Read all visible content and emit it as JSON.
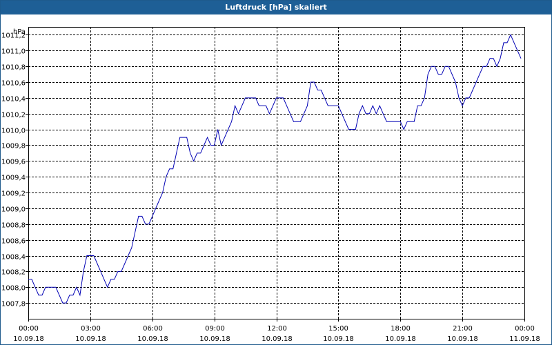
{
  "window": {
    "title": "Luftdruck [hPa] skaliert"
  },
  "colors": {
    "title_bar": "#1e5f96",
    "line": "#0000b4",
    "grid": "#000000",
    "background": "#ffffff"
  },
  "chart_data": {
    "type": "line",
    "title": "Luftdruck [hPa] skaliert",
    "ylabel": "hPa",
    "xlabel": "",
    "ylim": [
      1007.6,
      1011.3
    ],
    "grid": true,
    "y_ticks": [
      "1011,2",
      "1011,0",
      "1010,8",
      "1010,6",
      "1010,4",
      "1010,2",
      "1010,0",
      "1009,8",
      "1009,6",
      "1009,4",
      "1009,2",
      "1009,0",
      "1008,8",
      "1008,6",
      "1008,4",
      "1008,2",
      "1008,0",
      "1007,8"
    ],
    "y_tick_values": [
      1011.2,
      1011.0,
      1010.8,
      1010.6,
      1010.4,
      1010.2,
      1010.0,
      1009.8,
      1009.6,
      1009.4,
      1009.2,
      1009.0,
      1008.8,
      1008.6,
      1008.4,
      1008.2,
      1008.0,
      1007.8
    ],
    "x_ticks": [
      {
        "time": "00:00",
        "date": "10.09.18"
      },
      {
        "time": "03:00",
        "date": "10.09.18"
      },
      {
        "time": "06:00",
        "date": "10.09.18"
      },
      {
        "time": "09:00",
        "date": "10.09.18"
      },
      {
        "time": "12:00",
        "date": "10.09.18"
      },
      {
        "time": "15:00",
        "date": "10.09.18"
      },
      {
        "time": "18:00",
        "date": "10.09.18"
      },
      {
        "time": "21:00",
        "date": "10.09.18"
      },
      {
        "time": "00:00",
        "date": "11.09.18"
      }
    ],
    "series": [
      {
        "x": [
          "10.09.18 00:00",
          "10.09.18 00:10",
          "10.09.18 00:20",
          "10.09.18 00:30",
          "10.09.18 00:40",
          "10.09.18 00:50",
          "10.09.18 01:00",
          "10.09.18 01:10",
          "10.09.18 01:20",
          "10.09.18 01:30",
          "10.09.18 01:40",
          "10.09.18 01:50",
          "10.09.18 02:00",
          "10.09.18 02:10",
          "10.09.18 02:20",
          "10.09.18 02:30",
          "10.09.18 02:40",
          "10.09.18 02:50",
          "10.09.18 03:00",
          "10.09.18 03:10",
          "10.09.18 03:20",
          "10.09.18 03:30",
          "10.09.18 03:40",
          "10.09.18 03:50",
          "10.09.18 04:00",
          "10.09.18 04:10",
          "10.09.18 04:20",
          "10.09.18 04:30",
          "10.09.18 04:40",
          "10.09.18 04:50",
          "10.09.18 05:00",
          "10.09.18 05:10",
          "10.09.18 05:20",
          "10.09.18 05:30",
          "10.09.18 05:40",
          "10.09.18 05:50",
          "10.09.18 06:00",
          "10.09.18 06:10",
          "10.09.18 06:20",
          "10.09.18 06:30",
          "10.09.18 06:40",
          "10.09.18 06:50",
          "10.09.18 07:00",
          "10.09.18 07:10",
          "10.09.18 07:20",
          "10.09.18 07:30",
          "10.09.18 07:40",
          "10.09.18 07:50",
          "10.09.18 08:00",
          "10.09.18 08:10",
          "10.09.18 08:20",
          "10.09.18 08:30",
          "10.09.18 08:40",
          "10.09.18 08:50",
          "10.09.18 09:00",
          "10.09.18 09:10",
          "10.09.18 09:20",
          "10.09.18 09:30",
          "10.09.18 09:40",
          "10.09.18 09:50",
          "10.09.18 10:00",
          "10.09.18 10:10",
          "10.09.18 10:20",
          "10.09.18 10:30",
          "10.09.18 10:40",
          "10.09.18 10:50",
          "10.09.18 11:00",
          "10.09.18 11:10",
          "10.09.18 11:20",
          "10.09.18 11:30",
          "10.09.18 11:40",
          "10.09.18 11:50",
          "10.09.18 12:00",
          "10.09.18 12:10",
          "10.09.18 12:20",
          "10.09.18 12:30",
          "10.09.18 12:40",
          "10.09.18 12:50",
          "10.09.18 13:00",
          "10.09.18 13:10",
          "10.09.18 13:20",
          "10.09.18 13:30",
          "10.09.18 13:40",
          "10.09.18 13:50",
          "10.09.18 14:00",
          "10.09.18 14:10",
          "10.09.18 14:20",
          "10.09.18 14:30",
          "10.09.18 14:40",
          "10.09.18 14:50",
          "10.09.18 15:00",
          "10.09.18 15:10",
          "10.09.18 15:20",
          "10.09.18 15:30",
          "10.09.18 15:40",
          "10.09.18 15:50",
          "10.09.18 16:00",
          "10.09.18 16:10",
          "10.09.18 16:20",
          "10.09.18 16:30",
          "10.09.18 16:40",
          "10.09.18 16:50",
          "10.09.18 17:00",
          "10.09.18 17:10",
          "10.09.18 17:20",
          "10.09.18 17:30",
          "10.09.18 17:40",
          "10.09.18 17:50",
          "10.09.18 18:00",
          "10.09.18 18:10",
          "10.09.18 18:20",
          "10.09.18 18:30",
          "10.09.18 18:40",
          "10.09.18 18:50",
          "10.09.18 19:00",
          "10.09.18 19:10",
          "10.09.18 19:20",
          "10.09.18 19:30",
          "10.09.18 19:40",
          "10.09.18 19:50",
          "10.09.18 20:00",
          "10.09.18 20:10",
          "10.09.18 20:20",
          "10.09.18 20:30",
          "10.09.18 20:40",
          "10.09.18 20:50",
          "10.09.18 21:00",
          "10.09.18 21:10",
          "10.09.18 21:20",
          "10.09.18 21:30",
          "10.09.18 21:40",
          "10.09.18 21:50",
          "10.09.18 22:00",
          "10.09.18 22:10",
          "10.09.18 22:20",
          "10.09.18 22:30",
          "10.09.18 22:40",
          "10.09.18 22:50",
          "10.09.18 23:00",
          "10.09.18 23:10",
          "10.09.18 23:20",
          "10.09.18 23:30",
          "10.09.18 23:40",
          "10.09.18 23:50"
        ],
        "values": [
          1008.1,
          1008.1,
          1008.0,
          1007.9,
          1007.9,
          1008.0,
          1008.0,
          1008.0,
          1008.0,
          1007.9,
          1007.8,
          1007.8,
          1007.9,
          1007.9,
          1008.0,
          1007.9,
          1008.2,
          1008.4,
          1008.4,
          1008.4,
          1008.3,
          1008.2,
          1008.1,
          1008.0,
          1008.1,
          1008.1,
          1008.2,
          1008.2,
          1008.3,
          1008.4,
          1008.5,
          1008.7,
          1008.9,
          1008.9,
          1008.8,
          1008.8,
          1008.9,
          1009.0,
          1009.1,
          1009.2,
          1009.4,
          1009.5,
          1009.5,
          1009.7,
          1009.9,
          1009.9,
          1009.9,
          1009.7,
          1009.6,
          1009.7,
          1009.7,
          1009.8,
          1009.9,
          1009.8,
          1009.8,
          1010.0,
          1009.8,
          1009.9,
          1010.0,
          1010.1,
          1010.3,
          1010.2,
          1010.3,
          1010.4,
          1010.4,
          1010.4,
          1010.4,
          1010.3,
          1010.3,
          1010.3,
          1010.2,
          1010.3,
          1010.4,
          1010.4,
          1010.4,
          1010.3,
          1010.2,
          1010.1,
          1010.1,
          1010.1,
          1010.2,
          1010.3,
          1010.6,
          1010.6,
          1010.5,
          1010.5,
          1010.4,
          1010.3,
          1010.3,
          1010.3,
          1010.3,
          1010.2,
          1010.1,
          1010.0,
          1010.0,
          1010.0,
          1010.2,
          1010.3,
          1010.2,
          1010.2,
          1010.3,
          1010.2,
          1010.3,
          1010.2,
          1010.1,
          1010.1,
          1010.1,
          1010.1,
          1010.1,
          1010.0,
          1010.1,
          1010.1,
          1010.1,
          1010.3,
          1010.3,
          1010.4,
          1010.7,
          1010.8,
          1010.8,
          1010.7,
          1010.7,
          1010.8,
          1010.8,
          1010.7,
          1010.6,
          1010.4,
          1010.3,
          1010.4,
          1010.4,
          1010.5,
          1010.6,
          1010.7,
          1010.8,
          1010.8,
          1010.9,
          1010.9,
          1010.8,
          1010.9,
          1011.1,
          1011.1,
          1011.2,
          1011.1,
          1011.0,
          1010.9
        ]
      }
    ]
  }
}
